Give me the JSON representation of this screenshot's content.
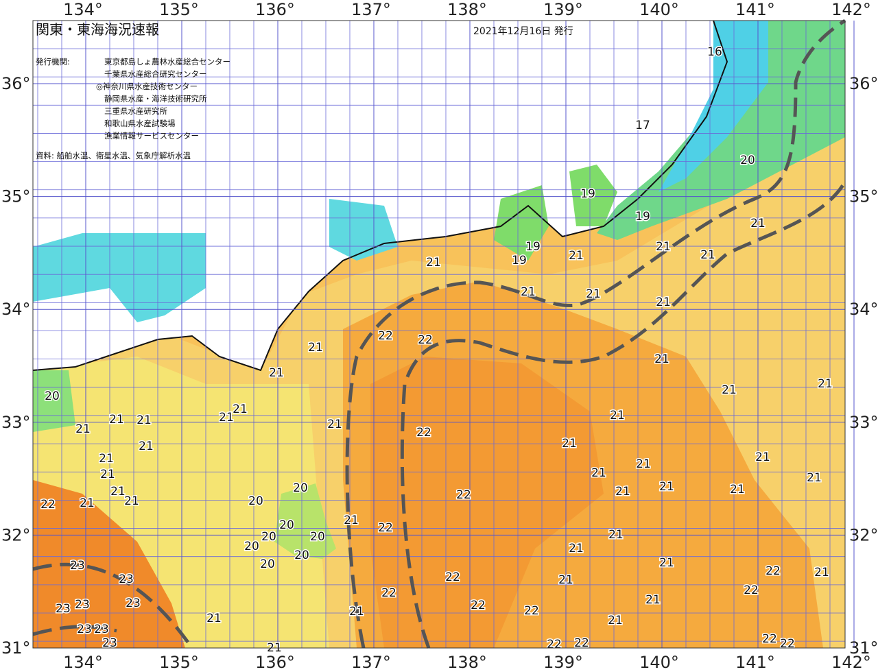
{
  "header": {
    "title": "関東・東海海況速報",
    "date": "2021年12月16日 発行"
  },
  "agencies": {
    "label": "発行機関:",
    "items": [
      "東京都島しょ農林水産総合センター",
      "千葉県水産総合研究センター",
      "◎神奈川県水産技術センター",
      "静岡県水産・海洋技術研究所",
      "三重県水産研究所",
      "和歌山県水産試験場",
      "漁業情報サービスセンター"
    ]
  },
  "source": "資料: 船舶水温、衛星水温、気象庁解析水温",
  "map": {
    "lon_ticks": [
      {
        "value": 134,
        "label": "134°"
      },
      {
        "value": 135,
        "label": "135°"
      },
      {
        "value": 136,
        "label": "136°"
      },
      {
        "value": 137,
        "label": "137°"
      },
      {
        "value": 138,
        "label": "138°"
      },
      {
        "value": 139,
        "label": "139°"
      },
      {
        "value": 140,
        "label": "140°"
      },
      {
        "value": 141,
        "label": "141°"
      },
      {
        "value": 142,
        "label": "142°"
      }
    ],
    "lat_ticks": [
      {
        "value": 36,
        "label": "36°"
      },
      {
        "value": 35,
        "label": "35°"
      },
      {
        "value": 34,
        "label": "34°"
      },
      {
        "value": 33,
        "label": "33°"
      },
      {
        "value": 32,
        "label": "32°"
      },
      {
        "value": 31,
        "label": "31°"
      }
    ],
    "isotherm_labels": [
      16,
      17,
      20,
      19,
      19,
      21,
      21,
      21,
      21,
      19,
      19,
      21,
      21,
      21,
      21,
      22,
      22,
      21,
      21,
      21,
      21,
      21,
      20,
      21,
      21,
      21,
      21,
      21,
      21,
      21,
      21,
      22,
      21,
      21,
      21,
      21,
      21,
      21,
      21,
      21,
      21,
      21,
      21,
      21,
      22,
      22,
      21,
      20,
      20,
      20,
      20,
      20,
      20,
      20,
      20,
      21,
      22,
      21,
      21,
      21,
      22,
      21,
      22,
      21,
      23,
      23,
      22,
      22,
      21,
      23,
      23,
      23,
      22,
      22,
      21,
      21,
      21,
      23,
      23,
      23,
      22,
      22,
      22,
      22,
      21
    ]
  }
}
